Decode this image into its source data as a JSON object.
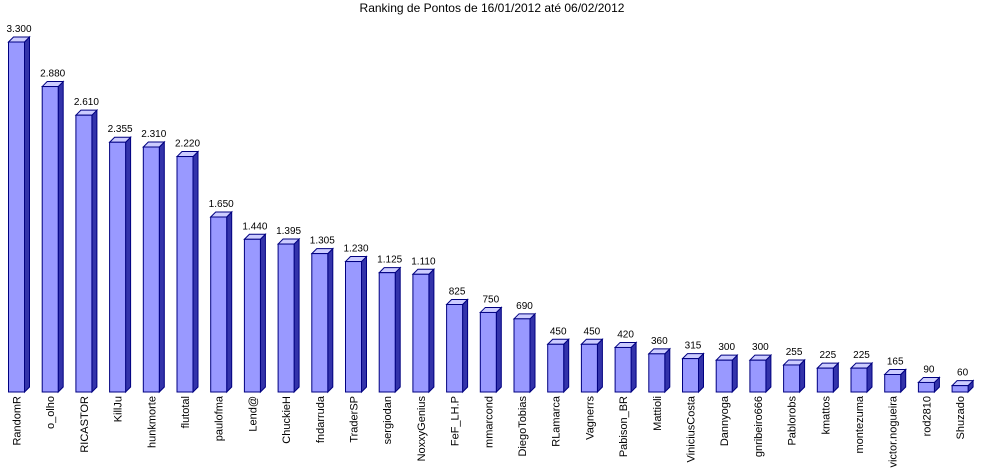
{
  "chart_data": {
    "type": "bar3d",
    "title": "Ranking de Pontos de 16/01/2012 até 06/02/2012",
    "categories": [
      "RandomR",
      "o_olho",
      "RICASTOR",
      "KillJu",
      "hunkmorte",
      "flutotal",
      "paulofma",
      "Lend@",
      "ChuckieH",
      "fndarruda",
      "TraderSP",
      "sergiodan",
      "NoxxyGenius",
      "FeF_LH.P",
      "mmarcond",
      "DiegoTobias",
      "RLamarca",
      "Vagnerrs",
      "Pabison_BR",
      "Mattioli",
      "ViniciusCosta",
      "Dannyoga",
      "gnribeiro666",
      "Pablorobs",
      "kmattos",
      "montezuma",
      "victor.nogueira",
      "rod2810",
      "Shuzado"
    ],
    "values": [
      3300,
      2880,
      2610,
      2355,
      2310,
      2220,
      1650,
      1440,
      1395,
      1305,
      1230,
      1125,
      1110,
      825,
      750,
      690,
      450,
      450,
      420,
      360,
      315,
      300,
      300,
      255,
      225,
      225,
      165,
      90,
      60
    ],
    "value_labels": [
      "3.300",
      "2.880",
      "2.610",
      "2.355",
      "2.310",
      "2.220",
      "1.650",
      "1.440",
      "1.395",
      "1.305",
      "1.230",
      "1.125",
      "1.110",
      "825",
      "750",
      "690",
      "450",
      "450",
      "420",
      "360",
      "315",
      "300",
      "300",
      "255",
      "225",
      "225",
      "165",
      "90",
      "60"
    ],
    "color": "#9999ff"
  }
}
